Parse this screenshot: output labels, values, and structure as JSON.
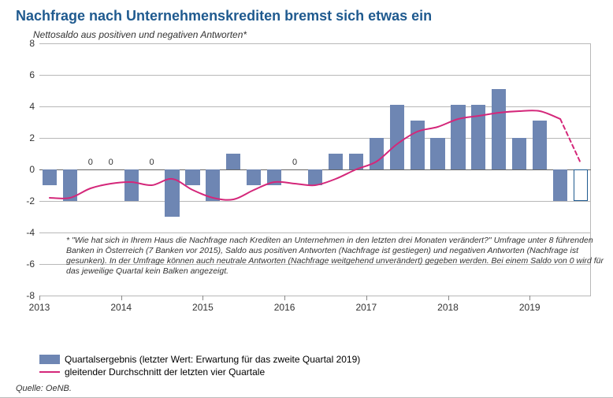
{
  "title": "Nachfrage nach Unternehmenskrediten bremst sich etwas ein",
  "subtitle": "Nettosaldo aus positiven und negativen Antworten*",
  "chart": {
    "type": "bar+line",
    "ylim": [
      -8,
      8
    ],
    "ytick_step": 2,
    "yticks": [
      -8,
      -6,
      -4,
      -2,
      0,
      2,
      4,
      6,
      8
    ],
    "bar_color": "#6e86b3",
    "bar_outline_color": "#1f5a8f",
    "line_color": "#d4277a",
    "line_width": 2,
    "grid_color": "#b8b8b8",
    "background_color": "#ffffff",
    "title_color": "#1f5a8f",
    "title_fontsize": 18,
    "label_fontsize": 12,
    "footnote_fontsize": 10.5,
    "bar_width_ratio": 0.7,
    "x_years": [
      "2013",
      "2014",
      "2015",
      "2016",
      "2017",
      "2018",
      "2019"
    ],
    "quarters_per_year": 4,
    "bars": [
      {
        "i": 0,
        "v": -1
      },
      {
        "i": 1,
        "v": -2
      },
      {
        "i": 2,
        "v": 0
      },
      {
        "i": 3,
        "v": 0
      },
      {
        "i": 4,
        "v": -2
      },
      {
        "i": 5,
        "v": 0
      },
      {
        "i": 6,
        "v": -3
      },
      {
        "i": 7,
        "v": -1
      },
      {
        "i": 8,
        "v": -2
      },
      {
        "i": 9,
        "v": 1
      },
      {
        "i": 10,
        "v": -1
      },
      {
        "i": 11,
        "v": -1
      },
      {
        "i": 12,
        "v": 0
      },
      {
        "i": 13,
        "v": -1
      },
      {
        "i": 14,
        "v": 1
      },
      {
        "i": 15,
        "v": 1
      },
      {
        "i": 16,
        "v": 2
      },
      {
        "i": 17,
        "v": 4.1
      },
      {
        "i": 18,
        "v": 3.1
      },
      {
        "i": 19,
        "v": 2
      },
      {
        "i": 20,
        "v": 4.1
      },
      {
        "i": 21,
        "v": 4.1
      },
      {
        "i": 22,
        "v": 5.1
      },
      {
        "i": 23,
        "v": 2
      },
      {
        "i": 24,
        "v": 3.1
      },
      {
        "i": 25,
        "v": -2
      },
      {
        "i": 26,
        "v": -2,
        "outline_only": true
      }
    ],
    "line": [
      {
        "i": 0,
        "y": -1.8
      },
      {
        "i": 1,
        "y": -1.8
      },
      {
        "i": 2,
        "y": -1.2
      },
      {
        "i": 3,
        "y": -0.9
      },
      {
        "i": 4,
        "y": -0.8
      },
      {
        "i": 5,
        "y": -1.0
      },
      {
        "i": 6,
        "y": -0.6
      },
      {
        "i": 7,
        "y": -1.3
      },
      {
        "i": 8,
        "y": -1.8
      },
      {
        "i": 9,
        "y": -1.9
      },
      {
        "i": 10,
        "y": -1.3
      },
      {
        "i": 11,
        "y": -0.8
      },
      {
        "i": 12,
        "y": -0.9
      },
      {
        "i": 13,
        "y": -1.0
      },
      {
        "i": 14,
        "y": -0.6
      },
      {
        "i": 15,
        "y": 0.0
      },
      {
        "i": 16,
        "y": 0.5
      },
      {
        "i": 17,
        "y": 1.6
      },
      {
        "i": 18,
        "y": 2.4
      },
      {
        "i": 19,
        "y": 2.7
      },
      {
        "i": 20,
        "y": 3.2
      },
      {
        "i": 21,
        "y": 3.4
      },
      {
        "i": 22,
        "y": 3.6
      },
      {
        "i": 23,
        "y": 3.7
      },
      {
        "i": 24,
        "y": 3.7
      },
      {
        "i": 25,
        "y": 3.2
      }
    ],
    "line_dashed_extension": [
      {
        "i": 25,
        "y": 3.2
      },
      {
        "i": 26,
        "y": 0.4
      }
    ],
    "footnote_top_value": -4.2,
    "footnote": "* \"Wie hat sich in Ihrem Haus die Nachfrage nach Krediten an Unternehmen in den letzten drei Monaten verändert?\" Umfrage unter 8 führenden Banken in Österreich (7 Banken vor 2015), Saldo aus positiven Antworten (Nachfrage ist gestiegen) und negativen Antworten (Nachfrage ist gesunken). In der Umfrage können auch neutrale Antworten (Nachfrage weitgehend unverändert) gegeben werden. Bei einem Saldo von 0 wird für das jeweilige Quartal kein Balken angezeigt."
  },
  "legend": {
    "series1": "Quartalsergebnis (letzter Wert: Erwartung für das zweite Quartal 2019)",
    "series2": "gleitender Durchschnitt der letzten vier Quartale"
  },
  "source": "Quelle: OeNB."
}
